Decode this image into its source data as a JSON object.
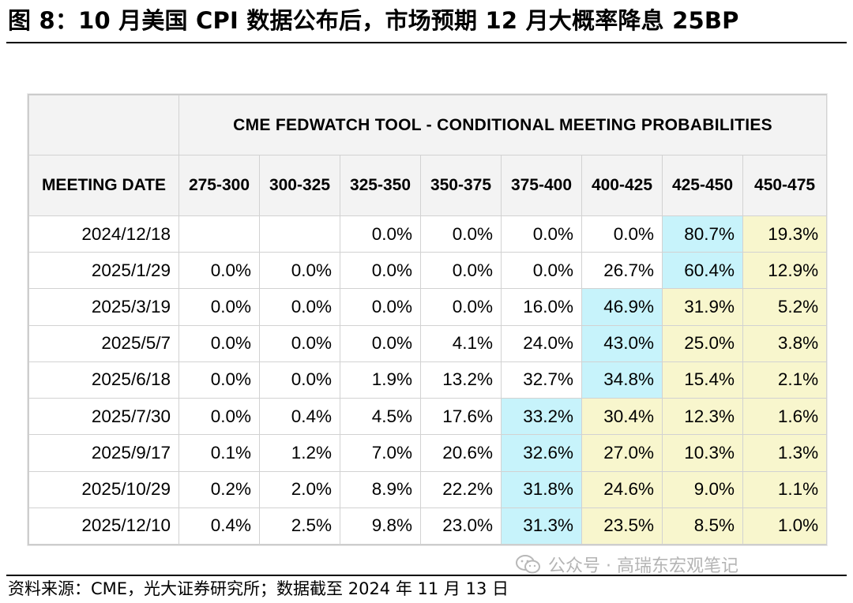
{
  "title": "图 8：10 月美国 CPI 数据公布后，市场预期 12 月大概率降息 25BP",
  "table": {
    "tool_title": "CME FEDWATCH TOOL - CONDITIONAL MEETING PROBABILITIES",
    "date_header": "MEETING DATE",
    "columns": [
      "275-300",
      "300-325",
      "325-350",
      "350-375",
      "375-400",
      "400-425",
      "425-450",
      "450-475"
    ],
    "rows": [
      {
        "date": "2024/12/18",
        "values": [
          "",
          "",
          "0.0%",
          "0.0%",
          "0.0%",
          "0.0%",
          "80.7%",
          "19.3%"
        ]
      },
      {
        "date": "2025/1/29",
        "values": [
          "0.0%",
          "0.0%",
          "0.0%",
          "0.0%",
          "0.0%",
          "26.7%",
          "60.4%",
          "12.9%"
        ]
      },
      {
        "date": "2025/3/19",
        "values": [
          "0.0%",
          "0.0%",
          "0.0%",
          "0.0%",
          "16.0%",
          "46.9%",
          "31.9%",
          "5.2%"
        ]
      },
      {
        "date": "2025/5/7",
        "values": [
          "0.0%",
          "0.0%",
          "0.0%",
          "4.1%",
          "24.0%",
          "43.0%",
          "25.0%",
          "3.8%"
        ]
      },
      {
        "date": "2025/6/18",
        "values": [
          "0.0%",
          "0.0%",
          "1.9%",
          "13.2%",
          "32.7%",
          "34.8%",
          "15.4%",
          "2.1%"
        ]
      },
      {
        "date": "2025/7/30",
        "values": [
          "0.0%",
          "0.4%",
          "4.5%",
          "17.6%",
          "33.2%",
          "30.4%",
          "12.3%",
          "1.6%"
        ]
      },
      {
        "date": "2025/9/17",
        "values": [
          "0.1%",
          "1.2%",
          "7.0%",
          "20.6%",
          "32.6%",
          "27.0%",
          "10.3%",
          "1.3%"
        ]
      },
      {
        "date": "2025/10/29",
        "values": [
          "0.2%",
          "2.0%",
          "8.9%",
          "22.2%",
          "31.8%",
          "24.6%",
          "9.0%",
          "1.1%"
        ]
      },
      {
        "date": "2025/12/10",
        "values": [
          "0.4%",
          "2.5%",
          "9.8%",
          "23.0%",
          "31.3%",
          "23.5%",
          "8.5%",
          "1.0%"
        ]
      }
    ],
    "highlight": [
      [
        "",
        "",
        "",
        "",
        "",
        "",
        "blue",
        "yellow"
      ],
      [
        "",
        "",
        "",
        "",
        "",
        "",
        "blue",
        "yellow"
      ],
      [
        "",
        "",
        "",
        "",
        "",
        "blue",
        "yellow",
        "yellow"
      ],
      [
        "",
        "",
        "",
        "",
        "",
        "blue",
        "yellow",
        "yellow"
      ],
      [
        "",
        "",
        "",
        "",
        "",
        "blue",
        "yellow",
        "yellow"
      ],
      [
        "",
        "",
        "",
        "",
        "blue",
        "yellow",
        "yellow",
        "yellow"
      ],
      [
        "",
        "",
        "",
        "",
        "blue",
        "yellow",
        "yellow",
        "yellow"
      ],
      [
        "",
        "",
        "",
        "",
        "blue",
        "yellow",
        "yellow",
        "yellow"
      ],
      [
        "",
        "",
        "",
        "",
        "blue",
        "yellow",
        "yellow",
        "yellow"
      ]
    ]
  },
  "colors": {
    "highlight_blue": "#c7f3fb",
    "highlight_yellow": "#f8f6cd",
    "header_bg": "#f3f3f3"
  },
  "watermark": "公众号 · 高瑞东宏观笔记",
  "source": "资料来源：CME，光大证券研究所；数据截至 2024 年 11 月 13 日"
}
